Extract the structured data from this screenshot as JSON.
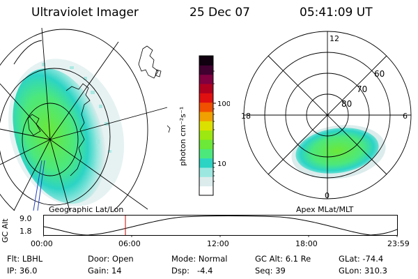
{
  "header": {
    "title": "Ultraviolet Imager",
    "date": "25 Dec 07",
    "time": "05:41:09 UT"
  },
  "colorbar": {
    "unit_label": "photon cm⁻²s⁻¹",
    "tick_100": "100",
    "tick_10": "10",
    "colors": [
      "#ffffff",
      "#dcecec",
      "#9ce8e0",
      "#2cd4c4",
      "#4ce87c",
      "#6ce838",
      "#9ce810",
      "#dce000",
      "#f0a000",
      "#f05000",
      "#e01010",
      "#b00020",
      "#800040",
      "#400030",
      "#100010"
    ]
  },
  "left_map": {
    "caption": "Geographic Lat/Lon"
  },
  "right_map": {
    "caption": "Apex MLat/MLT",
    "mlt_labels": {
      "top": "12",
      "left": "18",
      "right": "6",
      "bottom": "0"
    },
    "lat_labels": [
      "60",
      "70",
      "80"
    ]
  },
  "alt_panel": {
    "ylabel": "GC Alt",
    "y_ticks": [
      "9.0",
      "1.8"
    ],
    "x_ticks": [
      "00:00",
      "06:00",
      "12:00",
      "18:00",
      "23:59"
    ],
    "marker_color": "#cc0000"
  },
  "info": {
    "filter": "Flt: LBHL",
    "ip": "IP: 36.0",
    "door": "Door: Open",
    "gain": "Gain: 14",
    "mode": "Mode: Normal",
    "dsp": "Dsp:   -4.4",
    "gc_alt": "GC Alt: 6.1 Re",
    "seq": "Seq: 39",
    "glat": "GLat: -74.4",
    "glon": "GLon: 310.3"
  }
}
